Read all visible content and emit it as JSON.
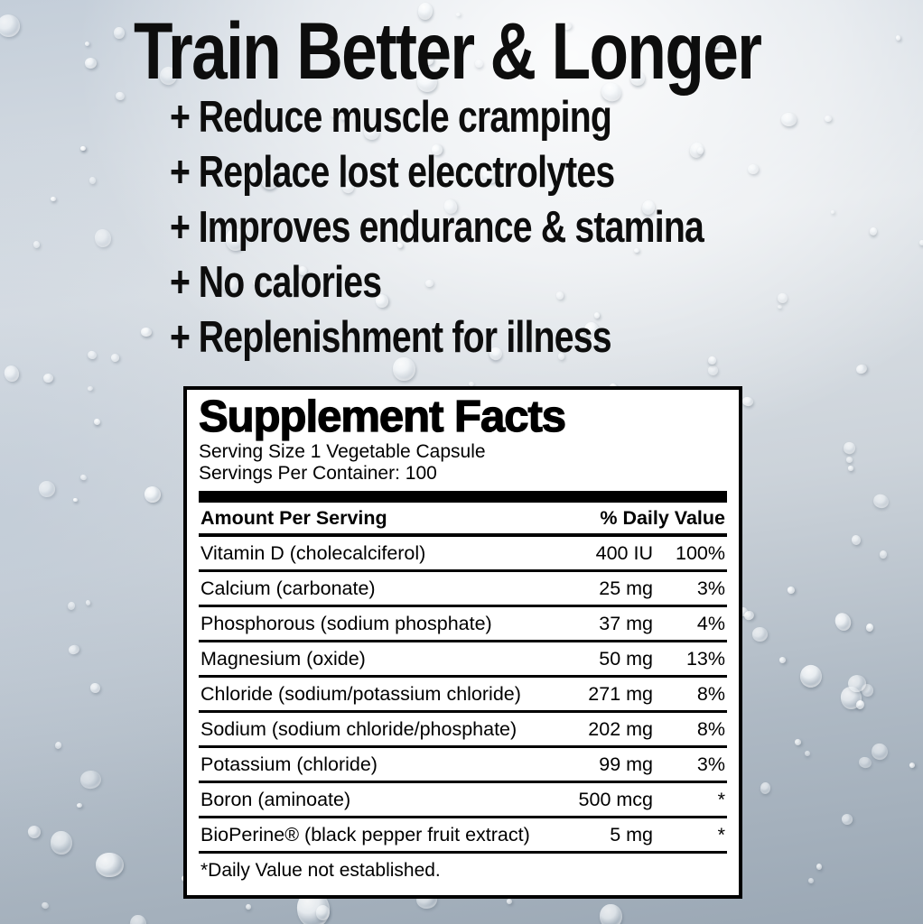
{
  "headline": {
    "title": "Train Better & Longer",
    "bullets": [
      {
        "marker": "+",
        "text": "Reduce muscle cramping"
      },
      {
        "marker": "+",
        "text": "Replace lost elecctrolytes"
      },
      {
        "marker": "+",
        "text": "Improves endurance & stamina"
      },
      {
        "marker": "+",
        "text": "No calories"
      },
      {
        "marker": "+",
        "text": "Replenishment for illness"
      }
    ]
  },
  "supplement_facts": {
    "title": "Supplement Facts",
    "serving_size": "Serving Size 1 Vegetable Capsule",
    "servings_per_container": "Servings Per Container: 100",
    "columns": {
      "left": "Amount Per Serving",
      "right": "% Daily Value"
    },
    "rows": [
      {
        "name": "Vitamin D (cholecalciferol)",
        "amount": "400 IU",
        "daily_value": "100%"
      },
      {
        "name": "Calcium (carbonate)",
        "amount": "25 mg",
        "daily_value": "3%"
      },
      {
        "name": "Phosphorous (sodium phosphate)",
        "amount": "37 mg",
        "daily_value": "4%"
      },
      {
        "name": "Magnesium (oxide)",
        "amount": "50 mg",
        "daily_value": "13%"
      },
      {
        "name": "Chloride (sodium/potassium chloride)",
        "amount": "271 mg",
        "daily_value": "8%"
      },
      {
        "name": "Sodium (sodium chloride/phosphate)",
        "amount": "202 mg",
        "daily_value": "8%"
      },
      {
        "name": "Potassium (chloride)",
        "amount": "99 mg",
        "daily_value": "3%"
      },
      {
        "name": "Boron (aminoate)",
        "amount": "500 mcg",
        "daily_value": "*"
      },
      {
        "name": "BioPerine® (black pepper fruit extract)",
        "amount": "5 mg",
        "daily_value": "*"
      }
    ],
    "footnote": "*Daily Value not established."
  },
  "colors": {
    "text": "#0d0d0d",
    "panel_background": "#ffffff",
    "panel_border": "#000000",
    "background_top": "#e9ebec",
    "background_bottom": "#9aa7b4"
  }
}
